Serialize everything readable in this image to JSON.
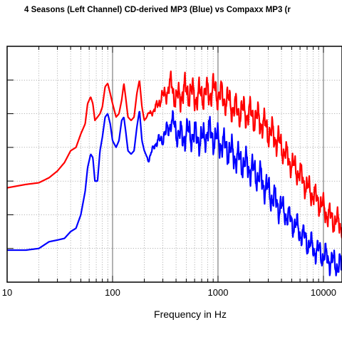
{
  "chart_data": {
    "type": "line",
    "title": "4 Seasons (Left Channel) CD-derived MP3 (Blue) vs Compaxx MP3 (r",
    "xlabel": "Frequency in Hz",
    "ylabel": "",
    "x_scale": "log",
    "xlim": [
      10,
      15000
    ],
    "ylim": [
      0,
      7
    ],
    "x_tick_labels": [
      "10",
      "100",
      "1000",
      "10000"
    ],
    "x_tick_values": [
      10,
      100,
      1000,
      10000
    ],
    "y_ticks_count": 8,
    "grid": true,
    "series": [
      {
        "color": "#ff0000",
        "x": [
          10,
          15,
          20,
          25,
          30,
          35,
          40,
          45,
          50,
          55,
          58,
          62,
          65,
          68,
          72,
          76,
          80,
          85,
          90,
          95,
          100,
          108,
          115,
          122,
          128,
          133,
          140,
          150,
          160,
          170,
          180,
          190,
          200,
          220,
          250,
          280,
          320,
          360,
          400,
          450,
          500,
          560,
          630,
          710,
          800,
          900,
          1000,
          1200,
          1500,
          2000,
          2500,
          3000,
          3500,
          4000,
          5000,
          6000,
          7000,
          8000,
          9000,
          10000,
          11000,
          12000,
          13000,
          14000,
          15000
        ],
        "y": [
          2.8,
          2.9,
          2.95,
          3.1,
          3.3,
          3.55,
          3.9,
          4.0,
          4.4,
          4.7,
          5.3,
          5.5,
          5.3,
          4.8,
          4.9,
          5.0,
          5.2,
          5.8,
          5.9,
          5.6,
          5.3,
          4.9,
          5.0,
          5.4,
          5.9,
          5.5,
          4.9,
          4.8,
          4.9,
          5.6,
          6.0,
          5.2,
          4.8,
          5.0,
          5.1,
          5.4,
          5.6,
          5.9,
          5.4,
          5.6,
          5.7,
          5.6,
          5.5,
          5.6,
          5.6,
          5.7,
          5.6,
          5.4,
          5.1,
          5.0,
          4.8,
          4.5,
          4.3,
          4.0,
          3.5,
          3.2,
          2.8,
          2.6,
          2.4,
          2.2,
          2.0,
          1.9,
          1.8,
          1.75,
          1.7
        ]
      },
      {
        "color": "#0000ff",
        "x": [
          10,
          15,
          20,
          25,
          30,
          35,
          40,
          45,
          50,
          55,
          58,
          62,
          65,
          68,
          72,
          76,
          80,
          85,
          90,
          95,
          100,
          108,
          115,
          122,
          128,
          133,
          140,
          150,
          160,
          170,
          180,
          190,
          200,
          220,
          250,
          280,
          320,
          360,
          400,
          450,
          500,
          560,
          630,
          710,
          800,
          900,
          1000,
          1200,
          1500,
          2000,
          2500,
          3000,
          3500,
          4000,
          5000,
          6000,
          7000,
          8000,
          9000,
          10000,
          11000,
          12000,
          13000,
          14000,
          15000
        ],
        "y": [
          0.95,
          0.95,
          1.0,
          1.2,
          1.25,
          1.3,
          1.5,
          1.6,
          2.0,
          2.7,
          3.4,
          3.8,
          3.7,
          3.0,
          3.0,
          3.9,
          4.3,
          4.9,
          5.0,
          4.7,
          4.2,
          4.0,
          4.2,
          4.8,
          4.9,
          4.5,
          3.9,
          3.8,
          3.9,
          4.6,
          5.1,
          4.2,
          3.9,
          3.6,
          4.1,
          4.2,
          4.4,
          4.8,
          4.5,
          4.3,
          4.4,
          4.4,
          4.3,
          4.2,
          4.5,
          4.3,
          4.2,
          4.0,
          3.7,
          3.4,
          3.1,
          2.7,
          2.4,
          2.2,
          1.8,
          1.5,
          1.2,
          1.0,
          0.9,
          0.8,
          0.7,
          0.6,
          0.55,
          0.5,
          0.45
        ]
      }
    ]
  }
}
